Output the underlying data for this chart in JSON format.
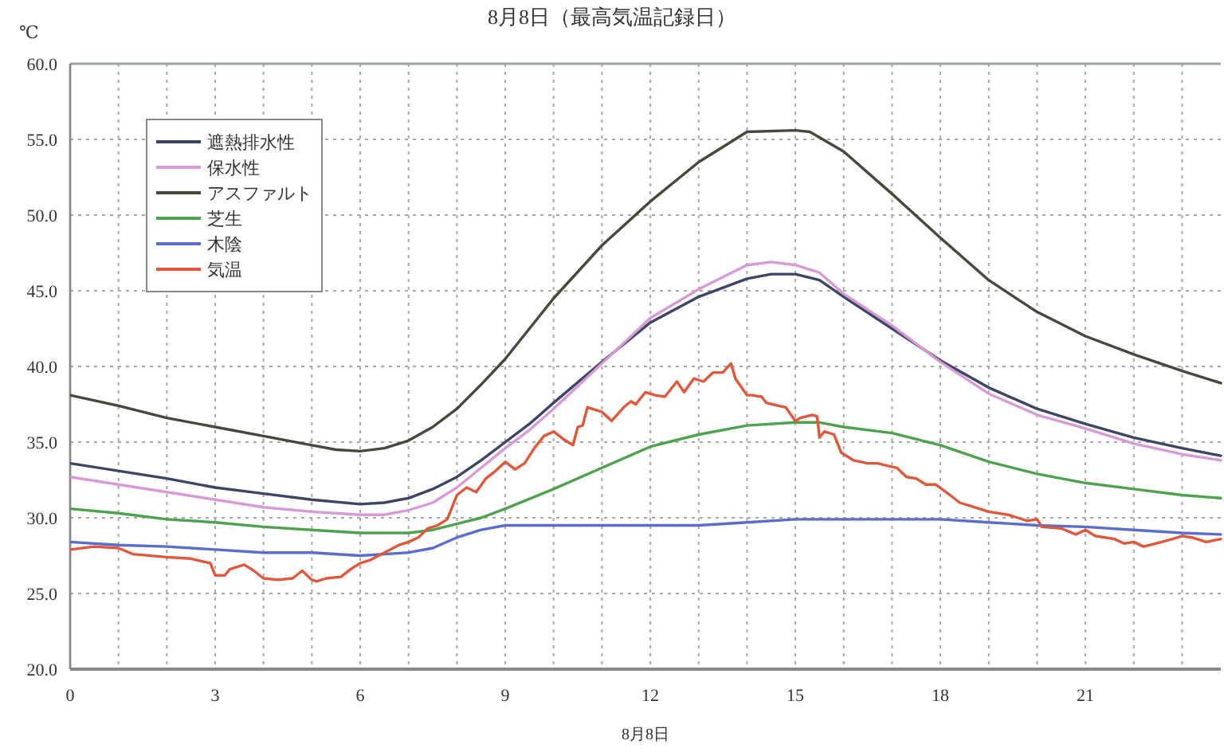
{
  "chart_data": {
    "type": "line",
    "title": "8月8日（最高気温記録日）",
    "xlabel": "8月8日",
    "ylabel": "℃",
    "xlim": [
      0,
      23.8
    ],
    "ylim": [
      20,
      60
    ],
    "xticks": [
      0,
      {
        "value": 1,
        "label": null
      },
      {
        "value": 2,
        "label": null
      },
      3,
      {
        "value": 4,
        "label": null
      },
      {
        "value": 5,
        "label": null
      },
      6,
      {
        "value": 7,
        "label": null
      },
      {
        "value": 8,
        "label": null
      },
      9,
      {
        "value": 10,
        "label": null
      },
      {
        "value": 11,
        "label": null
      },
      12,
      {
        "value": 13,
        "label": null
      },
      {
        "value": 14,
        "label": null
      },
      15,
      {
        "value": 16,
        "label": null
      },
      {
        "value": 17,
        "label": null
      },
      18,
      {
        "value": 19,
        "label": null
      },
      {
        "value": 20,
        "label": null
      },
      21,
      {
        "value": 22,
        "label": null
      },
      {
        "value": 23,
        "label": null
      }
    ],
    "yticks": [
      {
        "value": 20,
        "label": "20.0"
      },
      {
        "value": 25,
        "label": "25.0"
      },
      {
        "value": 30,
        "label": "30.0"
      },
      {
        "value": 35,
        "label": "35.0"
      },
      {
        "value": 40,
        "label": "40.0"
      },
      {
        "value": 45,
        "label": "45.0"
      },
      {
        "value": 50,
        "label": "50.0"
      },
      {
        "value": 55,
        "label": "55.0"
      },
      {
        "value": 60,
        "label": "60.0"
      }
    ],
    "grid": true,
    "legend": "top left",
    "series": [
      {
        "name": "遮熱排水性",
        "color": "#3c4664",
        "x": [
          0,
          1,
          2,
          3,
          4,
          5,
          6,
          6.5,
          7,
          7.5,
          8,
          8.5,
          9,
          9.5,
          10,
          11,
          12,
          13,
          14,
          14.5,
          15,
          15.5,
          16,
          17,
          18,
          19,
          20,
          21,
          22,
          23,
          23.8
        ],
        "values": [
          33.6,
          33.1,
          32.6,
          32.0,
          31.6,
          31.2,
          30.9,
          31.0,
          31.3,
          31.9,
          32.7,
          33.8,
          35.0,
          36.2,
          37.6,
          40.3,
          42.9,
          44.6,
          45.8,
          46.1,
          46.1,
          45.7,
          44.6,
          42.5,
          40.4,
          38.6,
          37.2,
          36.2,
          35.3,
          34.6,
          34.1
        ]
      },
      {
        "name": "保水性",
        "color": "#d69ad6",
        "x": [
          0,
          1,
          2,
          3,
          4,
          5,
          6,
          6.5,
          7,
          7.5,
          8,
          8.5,
          9,
          9.5,
          10,
          11,
          12,
          13,
          14,
          14.5,
          15,
          15.5,
          16,
          17,
          18,
          19,
          20,
          21,
          22,
          23,
          23.8
        ],
        "values": [
          32.7,
          32.2,
          31.7,
          31.2,
          30.7,
          30.4,
          30.2,
          30.2,
          30.5,
          31.0,
          32.0,
          33.3,
          34.6,
          35.8,
          37.2,
          40.2,
          43.2,
          45.1,
          46.7,
          46.9,
          46.7,
          46.2,
          44.8,
          42.7,
          40.3,
          38.2,
          36.8,
          35.9,
          34.9,
          34.2,
          33.8
        ]
      },
      {
        "name": "アスファルト",
        "color": "#48483a",
        "x": [
          0,
          1,
          2,
          3,
          4,
          5,
          5.5,
          6,
          6.5,
          7,
          7.5,
          8,
          8.5,
          9,
          10,
          11,
          12,
          13,
          14,
          15,
          15.3,
          16,
          17,
          18,
          19,
          20,
          21,
          22,
          23,
          23.8
        ],
        "values": [
          38.1,
          37.4,
          36.6,
          36.0,
          35.4,
          34.8,
          34.5,
          34.4,
          34.6,
          35.1,
          36.0,
          37.2,
          38.8,
          40.5,
          44.5,
          48.0,
          50.9,
          53.5,
          55.5,
          55.6,
          55.5,
          54.2,
          51.4,
          48.5,
          45.7,
          43.6,
          42.0,
          40.8,
          39.7,
          38.9
        ]
      },
      {
        "name": "芝生",
        "color": "#4ea24e",
        "x": [
          0,
          1,
          2,
          3,
          4,
          5,
          6,
          7,
          7.5,
          8,
          8.5,
          9,
          10,
          11,
          12,
          13,
          14,
          15,
          15.5,
          16,
          17,
          18,
          19,
          20,
          21,
          22,
          23,
          23.8
        ],
        "values": [
          30.6,
          30.3,
          29.9,
          29.7,
          29.4,
          29.2,
          29.0,
          29.0,
          29.2,
          29.6,
          30.0,
          30.6,
          31.9,
          33.3,
          34.7,
          35.5,
          36.1,
          36.3,
          36.3,
          36.0,
          35.6,
          34.8,
          33.7,
          32.9,
          32.3,
          31.9,
          31.5,
          31.3
        ]
      },
      {
        "name": "木陰",
        "color": "#5a6ccc",
        "x": [
          0,
          1,
          2,
          3,
          4,
          5,
          6,
          7,
          7.5,
          8,
          8.5,
          9,
          10,
          11,
          12,
          13,
          14,
          15,
          16,
          17,
          18,
          19,
          20,
          21,
          22,
          23,
          23.8
        ],
        "values": [
          28.4,
          28.2,
          28.1,
          27.9,
          27.7,
          27.7,
          27.5,
          27.7,
          28.0,
          28.7,
          29.2,
          29.5,
          29.5,
          29.5,
          29.5,
          29.5,
          29.7,
          29.9,
          29.9,
          29.9,
          29.9,
          29.7,
          29.5,
          29.4,
          29.2,
          29.0,
          28.9
        ]
      },
      {
        "name": "気温",
        "color": "#e0583c",
        "x": [
          0,
          0.5,
          1,
          1.3,
          2,
          2.5,
          2.9,
          3.0,
          3.2,
          3.3,
          3.6,
          3.8,
          4.0,
          4.3,
          4.6,
          4.8,
          5.0,
          5.1,
          5.3,
          5.6,
          5.8,
          6.0,
          6.2,
          6.5,
          6.8,
          7.0,
          7.2,
          7.4,
          7.6,
          7.8,
          8.0,
          8.2,
          8.4,
          8.6,
          8.8,
          9.0,
          9.2,
          9.4,
          9.6,
          9.8,
          10.0,
          10.2,
          10.4,
          10.5,
          10.6,
          10.7,
          10.9,
          11.0,
          11.2,
          11.45,
          11.6,
          11.7,
          11.9,
          12.1,
          12.3,
          12.55,
          12.7,
          12.9,
          13.1,
          13.3,
          13.5,
          13.67,
          13.76,
          14.0,
          14.1,
          14.3,
          14.4,
          14.65,
          14.8,
          15.0,
          15.1,
          15.35,
          15.45,
          15.5,
          15.6,
          15.8,
          15.95,
          16.2,
          16.5,
          16.7,
          16.95,
          17.1,
          17.3,
          17.5,
          17.7,
          17.9,
          18.2,
          18.4,
          18.7,
          19.0,
          19.4,
          19.6,
          19.8,
          20.0,
          20.1,
          20.5,
          20.8,
          21.0,
          21.2,
          21.6,
          21.8,
          22.0,
          22.2,
          22.45,
          22.8,
          23.0,
          23.2,
          23.5,
          23.8
        ],
        "values": [
          27.9,
          28.1,
          28.0,
          27.6,
          27.4,
          27.3,
          27.0,
          26.2,
          26.2,
          26.6,
          26.9,
          26.5,
          26.0,
          25.9,
          26.0,
          26.5,
          25.9,
          25.8,
          26.0,
          26.1,
          26.6,
          27.0,
          27.2,
          27.7,
          28.2,
          28.4,
          28.7,
          29.3,
          29.5,
          29.9,
          31.5,
          32.0,
          31.7,
          32.6,
          33.1,
          33.7,
          33.2,
          33.6,
          34.6,
          35.4,
          35.7,
          35.2,
          34.8,
          36.0,
          36.1,
          37.3,
          37.1,
          37.0,
          36.4,
          37.3,
          37.7,
          37.5,
          38.3,
          38.1,
          38.0,
          39.0,
          38.3,
          39.2,
          39.0,
          39.6,
          39.6,
          40.2,
          39.2,
          38.1,
          38.1,
          38.0,
          37.6,
          37.4,
          37.3,
          36.4,
          36.6,
          36.8,
          36.7,
          35.3,
          35.7,
          35.5,
          34.3,
          33.8,
          33.6,
          33.6,
          33.4,
          33.3,
          32.7,
          32.6,
          32.2,
          32.2,
          31.5,
          31.0,
          30.7,
          30.4,
          30.2,
          30.0,
          29.8,
          29.9,
          29.4,
          29.3,
          28.9,
          29.2,
          28.8,
          28.6,
          28.3,
          28.4,
          28.1,
          28.3,
          28.6,
          28.8,
          28.7,
          28.4,
          28.6
        ]
      }
    ]
  }
}
